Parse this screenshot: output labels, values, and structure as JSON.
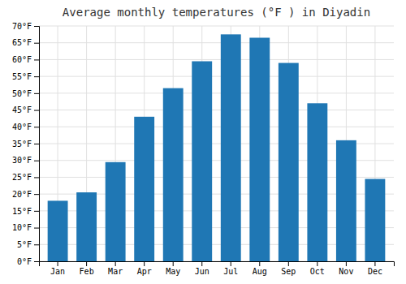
{
  "chart_data": {
    "type": "bar",
    "title": "Average monthly temperatures (°F ) in Diyadin",
    "categories": [
      "Jan",
      "Feb",
      "Mar",
      "Apr",
      "May",
      "Jun",
      "Jul",
      "Aug",
      "Sep",
      "Oct",
      "Nov",
      "Dec"
    ],
    "values": [
      18,
      20.5,
      29.5,
      43,
      51.5,
      59.5,
      67.5,
      66.5,
      59,
      47,
      36,
      24.5
    ],
    "ylim": [
      0,
      70
    ],
    "yticks": [
      {
        "value": 0,
        "label": "0°F"
      },
      {
        "value": 5,
        "label": "5°F"
      },
      {
        "value": 10,
        "label": "10°F"
      },
      {
        "value": 15,
        "label": "15°F"
      },
      {
        "value": 20,
        "label": "20°F"
      },
      {
        "value": 25,
        "label": "25°F"
      },
      {
        "value": 30,
        "label": "30°F"
      },
      {
        "value": 35,
        "label": "35°F"
      },
      {
        "value": 40,
        "label": "40°F"
      },
      {
        "value": 45,
        "label": "45°F"
      },
      {
        "value": 50,
        "label": "50°F"
      },
      {
        "value": 55,
        "label": "55°F"
      },
      {
        "value": 60,
        "label": "60°F"
      },
      {
        "value": 65,
        "label": "65°F"
      },
      {
        "value": 70,
        "label": "70°F"
      }
    ],
    "grid": true
  }
}
